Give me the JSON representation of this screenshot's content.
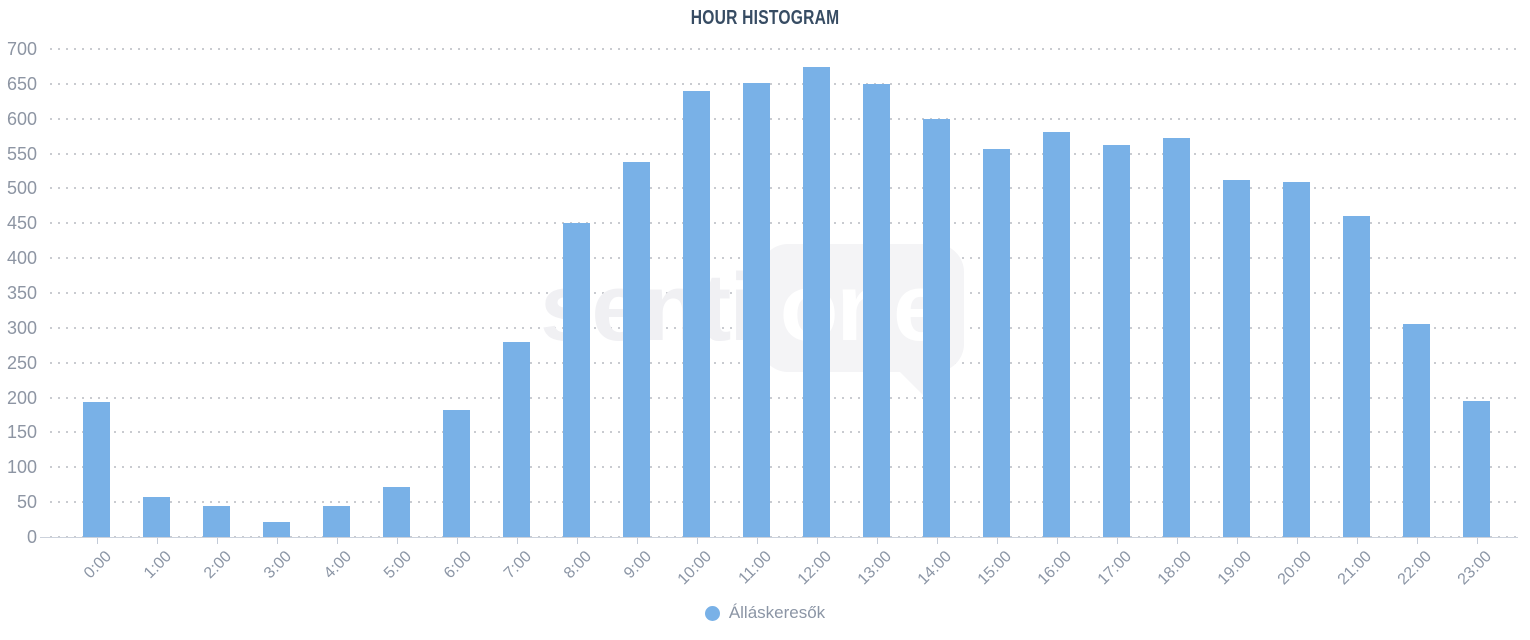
{
  "title": "HOUR HISTOGRAM",
  "watermark": {
    "part1": "senti",
    "part2": "one"
  },
  "legend": {
    "label": "Álláskeresők"
  },
  "colors": {
    "bar": "#79b1e7",
    "title": "#374c63",
    "axis_label": "#8b95a5",
    "gridline": "#c9cbd0",
    "axis_line": "#ccd2dc",
    "watermark": "#f4f4f6"
  },
  "chart_data": {
    "type": "bar",
    "title": "HOUR HISTOGRAM",
    "categories": [
      "0:00",
      "1:00",
      "2:00",
      "3:00",
      "4:00",
      "5:00",
      "6:00",
      "7:00",
      "8:00",
      "9:00",
      "10:00",
      "11:00",
      "12:00",
      "13:00",
      "14:00",
      "15:00",
      "16:00",
      "17:00",
      "18:00",
      "19:00",
      "20:00",
      "21:00",
      "22:00",
      "23:00"
    ],
    "series": [
      {
        "name": "Álláskeresők",
        "values": [
          194,
          58,
          45,
          21,
          44,
          72,
          182,
          280,
          450,
          538,
          640,
          651,
          674,
          650,
          600,
          557,
          581,
          563,
          573,
          512,
          509,
          461,
          306,
          195
        ]
      }
    ],
    "xlabel": "",
    "ylabel": "",
    "ylim": [
      0,
      700
    ],
    "yticks": [
      0,
      50,
      100,
      150,
      200,
      250,
      300,
      350,
      400,
      450,
      500,
      550,
      600,
      650,
      700
    ],
    "grid": "dotted-horizontal",
    "legend_position": "bottom"
  }
}
